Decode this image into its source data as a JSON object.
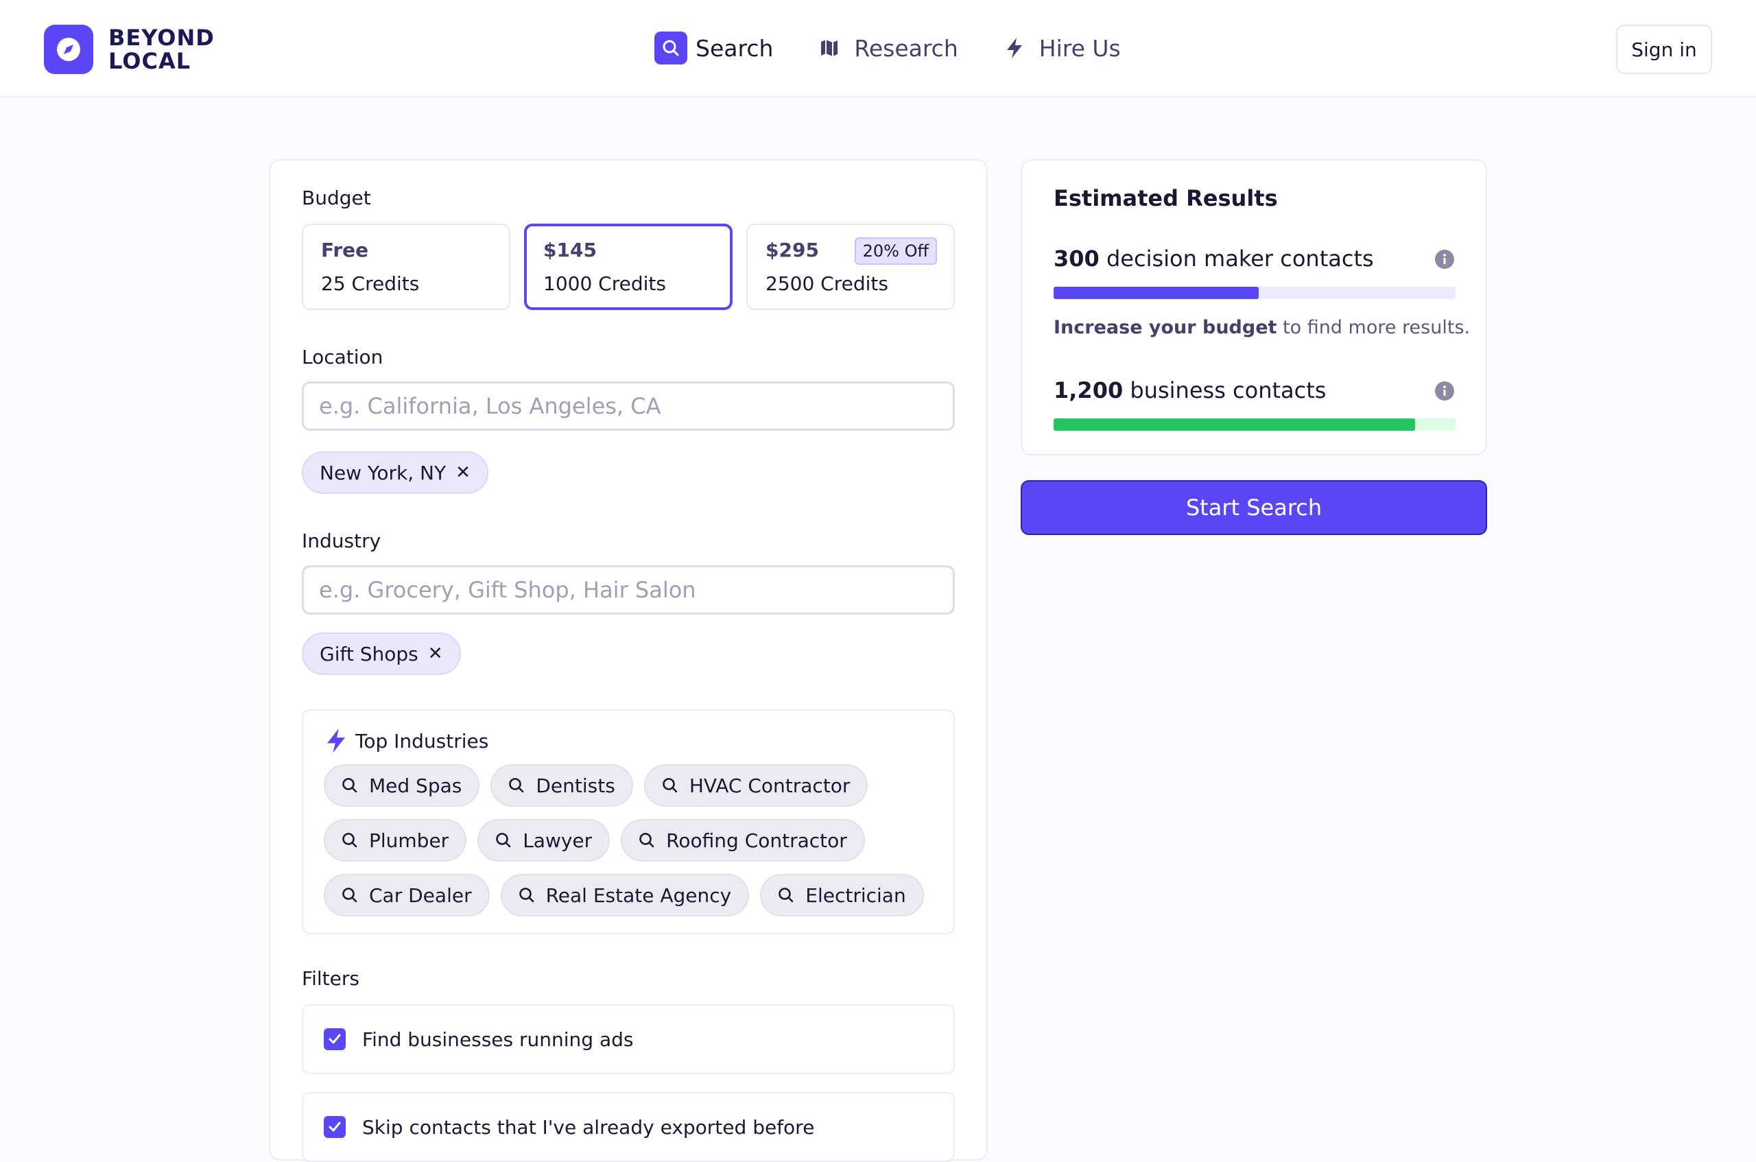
{
  "brand": {
    "line1": "BEYOND",
    "line2": "LOCAL",
    "accent": "#5b46f5"
  },
  "nav": {
    "items": [
      {
        "label": "Search",
        "icon": "search-icon",
        "active": true
      },
      {
        "label": "Research",
        "icon": "map-icon",
        "active": false
      },
      {
        "label": "Hire Us",
        "icon": "lightning-icon",
        "active": false
      }
    ],
    "signin_label": "Sign in"
  },
  "budget": {
    "label": "Budget",
    "options": [
      {
        "price": "Free",
        "credits": "25 Credits",
        "selected": false
      },
      {
        "price": "$145",
        "credits": "1000 Credits",
        "selected": true
      },
      {
        "price": "$295",
        "credits": "2500 Credits",
        "badge": "20% Off",
        "selected": false
      }
    ]
  },
  "location": {
    "label": "Location",
    "placeholder": "e.g. California, Los Angeles, CA",
    "value": "",
    "chips": [
      "New York, NY"
    ]
  },
  "industry": {
    "label": "Industry",
    "placeholder": "e.g. Grocery, Gift Shop, Hair Salon",
    "value": "",
    "chips": [
      "Gift Shops"
    ]
  },
  "top_industries": {
    "title": "Top Industries",
    "rows": [
      [
        "Med Spas",
        "Dentists",
        "HVAC Contractor"
      ],
      [
        "Plumber",
        "Lawyer",
        "Roofing Contractor"
      ],
      [
        "Car Dealer",
        "Real Estate Agency",
        "Electrician"
      ]
    ]
  },
  "filters": {
    "label": "Filters",
    "items": [
      {
        "text": "Find businesses running ads",
        "checked": true
      },
      {
        "text": "Skip contacts that I've already exported before",
        "checked": true
      }
    ]
  },
  "results": {
    "title": "Estimated Results",
    "decision_makers": {
      "count": "300",
      "text": "decision maker contacts",
      "fill": 0.51,
      "color": "#5b46f5",
      "track": "#ecebfd"
    },
    "hint_bold": "Increase your budget",
    "hint_rest": " to find more results.",
    "business": {
      "count": "1,200",
      "text": "business contacts",
      "fill": 0.9,
      "color": "#22c55e",
      "track": "#dcfce4"
    }
  },
  "start_label": "Start Search"
}
